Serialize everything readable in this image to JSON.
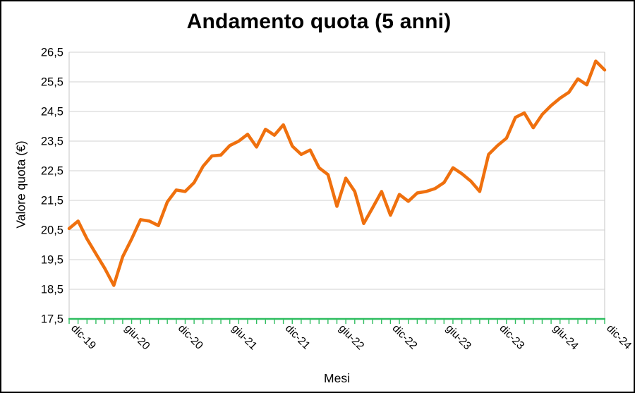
{
  "frame": {
    "background": "#FFFFFF",
    "outer_border_color": "#000000"
  },
  "chart_data": {
    "type": "line",
    "title": "Andamento quota (5 anni)",
    "xlabel": "Mesi",
    "ylabel": "Valore quota (€)",
    "ylim": [
      17.5,
      26.5
    ],
    "ytick_step": 1,
    "ytick_labels": [
      "17,5",
      "18,5",
      "19,5",
      "20,5",
      "21,5",
      "22,5",
      "23,5",
      "24,5",
      "25,5",
      "26,5"
    ],
    "xtick_labels": [
      "dic-19",
      "giu-20",
      "dic-20",
      "giu-21",
      "dic-21",
      "giu-22",
      "dic-22",
      "giu-23",
      "dic-23",
      "giu-24",
      "dic-24"
    ],
    "xtick_label_every": 6,
    "n_points": 61,
    "grid": true,
    "legend": false,
    "series": [
      {
        "name": "Valore quota",
        "values": [
          20.55,
          20.8,
          20.2,
          19.7,
          19.2,
          18.63,
          19.6,
          20.2,
          20.85,
          20.8,
          20.65,
          21.45,
          21.85,
          21.8,
          22.1,
          22.65,
          23.0,
          23.03,
          23.35,
          23.5,
          23.73,
          23.3,
          23.9,
          23.7,
          24.05,
          23.33,
          23.05,
          23.2,
          22.6,
          22.37,
          21.3,
          22.25,
          21.8,
          20.72,
          21.25,
          21.8,
          21.0,
          21.7,
          21.47,
          21.75,
          21.8,
          21.9,
          22.1,
          22.6,
          22.4,
          22.15,
          21.8,
          23.05,
          23.35,
          23.6,
          24.3,
          24.45,
          23.95,
          24.4,
          24.7,
          24.95,
          25.15,
          25.6,
          25.4,
          26.2,
          25.9
        ]
      }
    ],
    "style": {
      "line_color": "#EF700E",
      "line_width": 4.5,
      "x_axis_color": "#2FBD60",
      "grid_color": "#D9D9D9",
      "plot_border_color": "#CFCFCF",
      "text_color": "#000000"
    }
  }
}
